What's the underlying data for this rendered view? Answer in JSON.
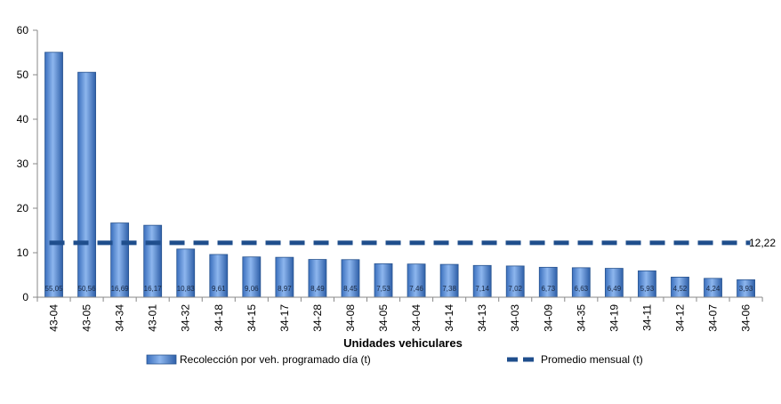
{
  "chart_data": {
    "type": "bar",
    "categories": [
      "43-04",
      "43-05",
      "34-34",
      "43-01",
      "34-32",
      "34-18",
      "34-15",
      "34-17",
      "34-28",
      "34-08",
      "34-05",
      "34-04",
      "34-14",
      "34-13",
      "34-03",
      "34-09",
      "34-35",
      "34-19",
      "34-11",
      "34-12",
      "34-07",
      "34-06"
    ],
    "series": [
      {
        "name": "Recolección por veh. programado día (t)",
        "type": "bar",
        "values": [
          55.05,
          50.56,
          16.69,
          16.17,
          10.83,
          9.61,
          9.06,
          8.97,
          8.49,
          8.45,
          7.53,
          7.46,
          7.38,
          7.14,
          7.02,
          6.73,
          6.63,
          6.49,
          5.93,
          4.52,
          4.24,
          3.93
        ],
        "labels": [
          "55,05",
          "50,56",
          "16,69",
          "16,17",
          "10,83",
          "9,61",
          "9,06",
          "8,97",
          "8,49",
          "8,45",
          "7,53",
          "7,46",
          "7,38",
          "7,14",
          "7,02",
          "6,73",
          "6,63",
          "6,49",
          "5,93",
          "4,52",
          "4,24",
          "3,93"
        ],
        "color": "#5b8fd6"
      },
      {
        "name": "Promedio mensual (t)",
        "type": "line",
        "value": 12.22,
        "label": "12,22",
        "color": "#1f4e8c"
      }
    ],
    "title": "",
    "xlabel": "Unidades vehiculares",
    "ylabel": "",
    "ylim": [
      0,
      60
    ],
    "yticks": [
      0,
      10,
      20,
      30,
      40,
      50,
      60
    ],
    "legend": "bottom",
    "grid": false
  }
}
